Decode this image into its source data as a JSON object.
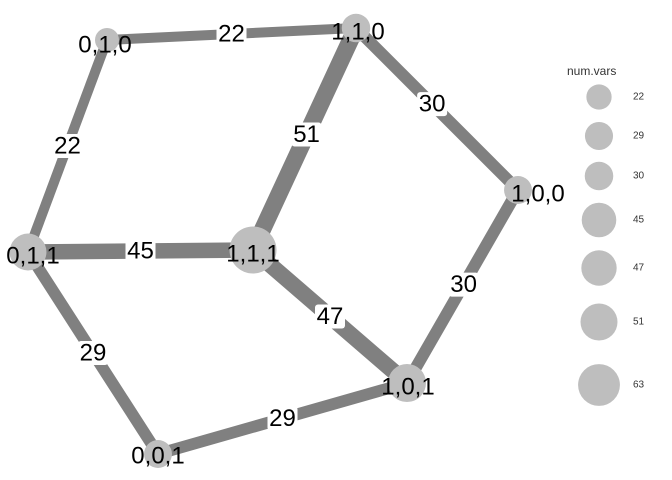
{
  "colors": {
    "edge": "#808080",
    "node": "#bebebe",
    "label": "#000000",
    "background": "#ffffff"
  },
  "graph": {
    "nodes": [
      {
        "id": "010",
        "label": "0,1,0",
        "num_vars": 22
      },
      {
        "id": "110",
        "label": "1,1,0",
        "num_vars": 30
      },
      {
        "id": "100",
        "label": "1,0,0",
        "num_vars": 29
      },
      {
        "id": "011",
        "label": "0,1,1",
        "num_vars": 45
      },
      {
        "id": "111",
        "label": "1,1,1",
        "num_vars": 63
      },
      {
        "id": "101",
        "label": "1,0,1",
        "num_vars": 47
      },
      {
        "id": "001",
        "label": "0,0,1",
        "num_vars": 29
      }
    ],
    "edges": [
      {
        "from": "010",
        "to": "110",
        "label": "22",
        "weight": 22
      },
      {
        "from": "010",
        "to": "011",
        "label": "22",
        "weight": 22
      },
      {
        "from": "110",
        "to": "100",
        "label": "30",
        "weight": 30
      },
      {
        "from": "110",
        "to": "111",
        "label": "51",
        "weight": 51
      },
      {
        "from": "011",
        "to": "111",
        "label": "45",
        "weight": 45
      },
      {
        "from": "011",
        "to": "001",
        "label": "29",
        "weight": 29
      },
      {
        "from": "111",
        "to": "101",
        "label": "47",
        "weight": 47
      },
      {
        "from": "100",
        "to": "101",
        "label": "30",
        "weight": 30
      },
      {
        "from": "001",
        "to": "101",
        "label": "29",
        "weight": 29
      }
    ]
  },
  "legend": {
    "title": "num.vars",
    "items": [
      "22",
      "29",
      "30",
      "45",
      "47",
      "51",
      "63"
    ]
  }
}
